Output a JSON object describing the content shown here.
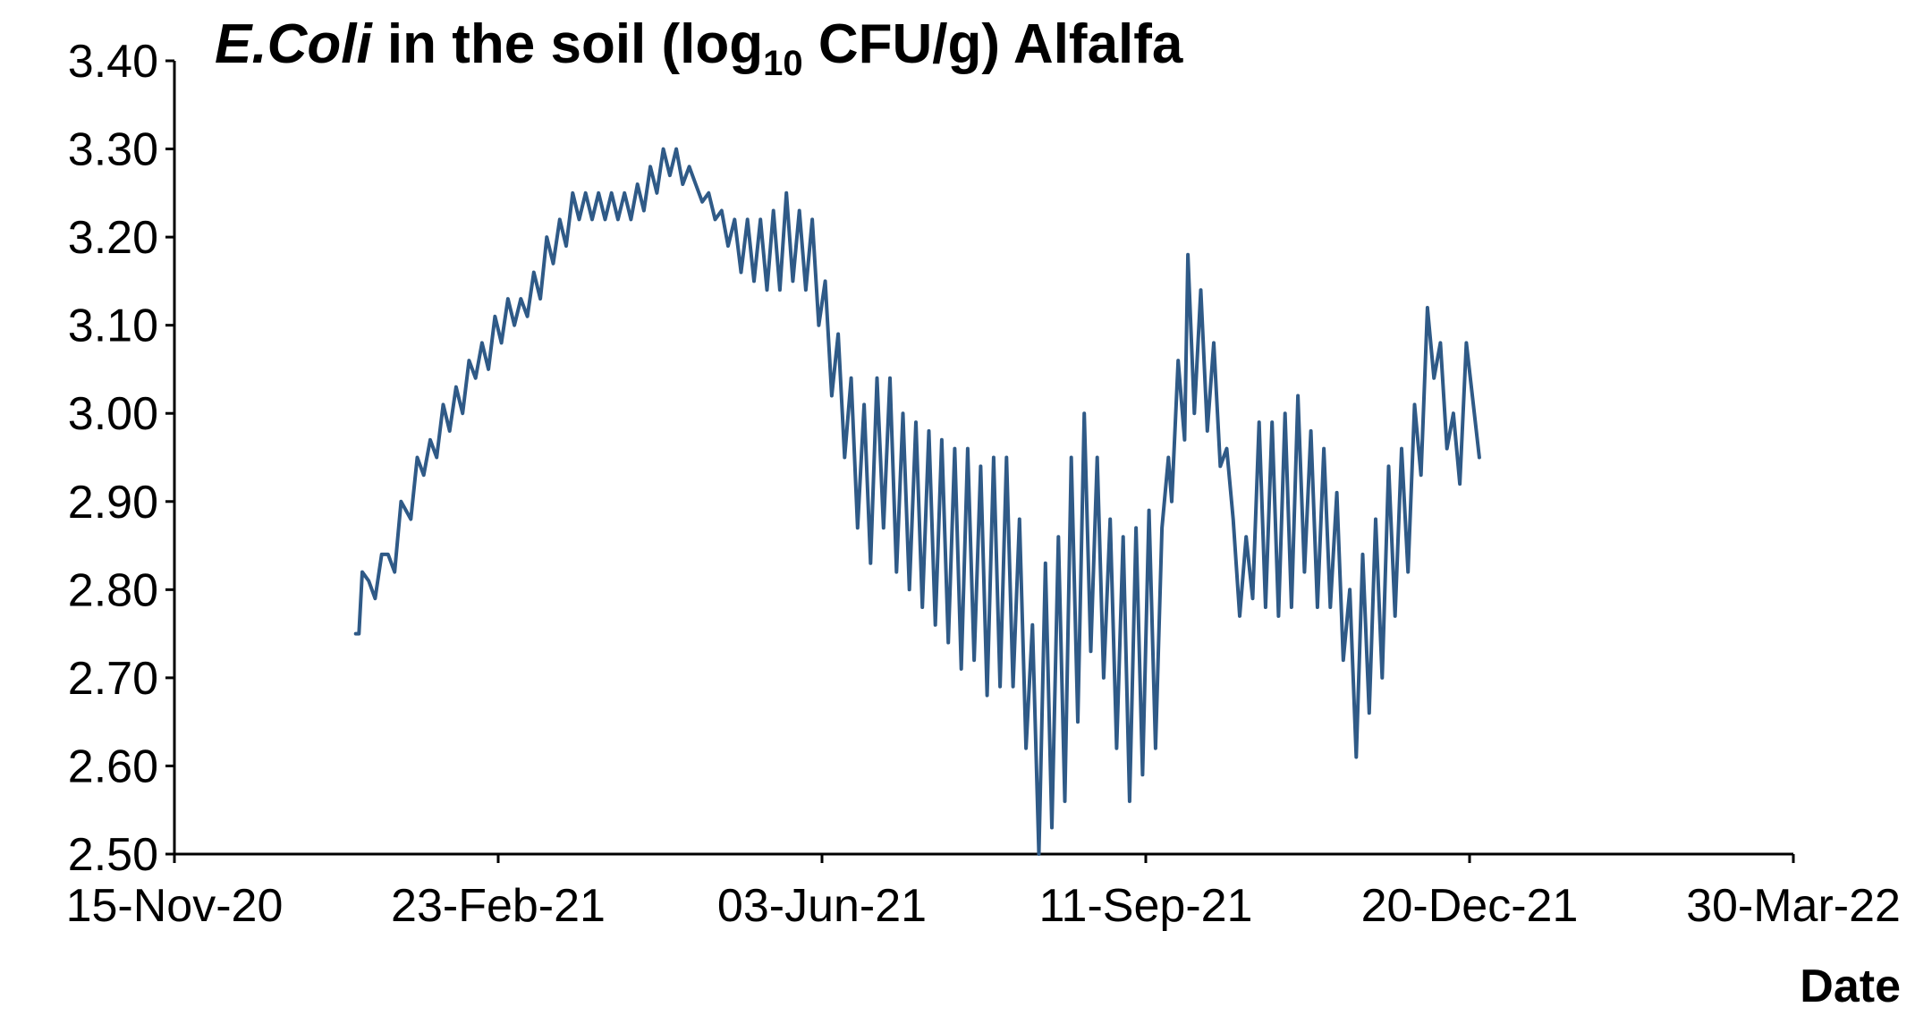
{
  "chart_data": {
    "type": "line",
    "title": {
      "italic": "E.Coli",
      "pre_sub": " in the soil (log",
      "sub": "10",
      "post_sub": " CFU/g) Alfalfa"
    },
    "xlabel": "Date",
    "ylabel": "",
    "xlim": [
      "2020-11-15",
      "2022-03-30"
    ],
    "ylim": [
      2.5,
      3.4
    ],
    "x_ticks": [
      "2020-11-15",
      "2021-02-23",
      "2021-06-03",
      "2021-09-11",
      "2021-12-20",
      "2022-03-30"
    ],
    "x_tick_labels": [
      "15-Nov-20",
      "23-Feb-21",
      "03-Jun-21",
      "11-Sep-21",
      "20-Dec-21",
      "30-Mar-22"
    ],
    "y_ticks": [
      2.5,
      2.6,
      2.7,
      2.8,
      2.9,
      3.0,
      3.1,
      3.2,
      3.3,
      3.4
    ],
    "y_tick_labels": [
      "2.50",
      "2.60",
      "2.70",
      "2.80",
      "2.90",
      "3.00",
      "3.10",
      "3.20",
      "3.30",
      "3.40"
    ],
    "grid": false,
    "legend": "none",
    "colors": {
      "line": "#2f5a87"
    },
    "series": [
      {
        "values": [
          [
            "2021-01-10",
            2.75
          ],
          [
            "2021-01-11",
            2.75
          ],
          [
            "2021-01-12",
            2.82
          ],
          [
            "2021-01-14",
            2.81
          ],
          [
            "2021-01-16",
            2.79
          ],
          [
            "2021-01-18",
            2.84
          ],
          [
            "2021-01-20",
            2.84
          ],
          [
            "2021-01-22",
            2.82
          ],
          [
            "2021-01-24",
            2.9
          ],
          [
            "2021-01-27",
            2.88
          ],
          [
            "2021-01-29",
            2.95
          ],
          [
            "2021-01-31",
            2.93
          ],
          [
            "2021-02-02",
            2.97
          ],
          [
            "2021-02-04",
            2.95
          ],
          [
            "2021-02-06",
            3.01
          ],
          [
            "2021-02-08",
            2.98
          ],
          [
            "2021-02-10",
            3.03
          ],
          [
            "2021-02-12",
            3.0
          ],
          [
            "2021-02-14",
            3.06
          ],
          [
            "2021-02-16",
            3.04
          ],
          [
            "2021-02-18",
            3.08
          ],
          [
            "2021-02-20",
            3.05
          ],
          [
            "2021-02-22",
            3.11
          ],
          [
            "2021-02-24",
            3.08
          ],
          [
            "2021-02-26",
            3.13
          ],
          [
            "2021-02-28",
            3.1
          ],
          [
            "2021-03-02",
            3.13
          ],
          [
            "2021-03-04",
            3.11
          ],
          [
            "2021-03-06",
            3.16
          ],
          [
            "2021-03-08",
            3.13
          ],
          [
            "2021-03-10",
            3.2
          ],
          [
            "2021-03-12",
            3.17
          ],
          [
            "2021-03-14",
            3.22
          ],
          [
            "2021-03-16",
            3.19
          ],
          [
            "2021-03-18",
            3.25
          ],
          [
            "2021-03-20",
            3.22
          ],
          [
            "2021-03-22",
            3.25
          ],
          [
            "2021-03-24",
            3.22
          ],
          [
            "2021-03-26",
            3.25
          ],
          [
            "2021-03-28",
            3.22
          ],
          [
            "2021-03-30",
            3.25
          ],
          [
            "2021-04-01",
            3.22
          ],
          [
            "2021-04-03",
            3.25
          ],
          [
            "2021-04-05",
            3.22
          ],
          [
            "2021-04-07",
            3.26
          ],
          [
            "2021-04-09",
            3.23
          ],
          [
            "2021-04-11",
            3.28
          ],
          [
            "2021-04-13",
            3.25
          ],
          [
            "2021-04-15",
            3.3
          ],
          [
            "2021-04-17",
            3.27
          ],
          [
            "2021-04-19",
            3.3
          ],
          [
            "2021-04-21",
            3.26
          ],
          [
            "2021-04-23",
            3.28
          ],
          [
            "2021-04-25",
            3.26
          ],
          [
            "2021-04-27",
            3.24
          ],
          [
            "2021-04-29",
            3.25
          ],
          [
            "2021-05-01",
            3.22
          ],
          [
            "2021-05-03",
            3.23
          ],
          [
            "2021-05-05",
            3.19
          ],
          [
            "2021-05-07",
            3.22
          ],
          [
            "2021-05-09",
            3.16
          ],
          [
            "2021-05-11",
            3.22
          ],
          [
            "2021-05-13",
            3.15
          ],
          [
            "2021-05-15",
            3.22
          ],
          [
            "2021-05-17",
            3.14
          ],
          [
            "2021-05-19",
            3.23
          ],
          [
            "2021-05-21",
            3.14
          ],
          [
            "2021-05-23",
            3.25
          ],
          [
            "2021-05-25",
            3.15
          ],
          [
            "2021-05-27",
            3.23
          ],
          [
            "2021-05-29",
            3.14
          ],
          [
            "2021-05-31",
            3.22
          ],
          [
            "2021-06-02",
            3.1
          ],
          [
            "2021-06-04",
            3.15
          ],
          [
            "2021-06-06",
            3.02
          ],
          [
            "2021-06-08",
            3.09
          ],
          [
            "2021-06-10",
            2.95
          ],
          [
            "2021-06-12",
            3.04
          ],
          [
            "2021-06-14",
            2.87
          ],
          [
            "2021-06-16",
            3.01
          ],
          [
            "2021-06-18",
            2.83
          ],
          [
            "2021-06-20",
            3.04
          ],
          [
            "2021-06-22",
            2.87
          ],
          [
            "2021-06-24",
            3.04
          ],
          [
            "2021-06-26",
            2.82
          ],
          [
            "2021-06-28",
            3.0
          ],
          [
            "2021-06-30",
            2.8
          ],
          [
            "2021-07-02",
            2.99
          ],
          [
            "2021-07-04",
            2.78
          ],
          [
            "2021-07-06",
            2.98
          ],
          [
            "2021-07-08",
            2.76
          ],
          [
            "2021-07-10",
            2.97
          ],
          [
            "2021-07-12",
            2.74
          ],
          [
            "2021-07-14",
            2.96
          ],
          [
            "2021-07-16",
            2.71
          ],
          [
            "2021-07-18",
            2.96
          ],
          [
            "2021-07-20",
            2.72
          ],
          [
            "2021-07-22",
            2.94
          ],
          [
            "2021-07-24",
            2.68
          ],
          [
            "2021-07-26",
            2.95
          ],
          [
            "2021-07-28",
            2.69
          ],
          [
            "2021-07-30",
            2.95
          ],
          [
            "2021-08-01",
            2.69
          ],
          [
            "2021-08-03",
            2.88
          ],
          [
            "2021-08-05",
            2.62
          ],
          [
            "2021-08-07",
            2.76
          ],
          [
            "2021-08-09",
            2.5
          ],
          [
            "2021-08-11",
            2.83
          ],
          [
            "2021-08-13",
            2.53
          ],
          [
            "2021-08-15",
            2.86
          ],
          [
            "2021-08-17",
            2.56
          ],
          [
            "2021-08-19",
            2.95
          ],
          [
            "2021-08-21",
            2.65
          ],
          [
            "2021-08-23",
            3.0
          ],
          [
            "2021-08-25",
            2.73
          ],
          [
            "2021-08-27",
            2.95
          ],
          [
            "2021-08-29",
            2.7
          ],
          [
            "2021-08-31",
            2.88
          ],
          [
            "2021-09-02",
            2.62
          ],
          [
            "2021-09-04",
            2.86
          ],
          [
            "2021-09-06",
            2.56
          ],
          [
            "2021-09-08",
            2.87
          ],
          [
            "2021-09-10",
            2.59
          ],
          [
            "2021-09-12",
            2.89
          ],
          [
            "2021-09-14",
            2.62
          ],
          [
            "2021-09-16",
            2.87
          ],
          [
            "2021-09-18",
            2.95
          ],
          [
            "2021-09-19",
            2.9
          ],
          [
            "2021-09-21",
            3.06
          ],
          [
            "2021-09-23",
            2.97
          ],
          [
            "2021-09-24",
            3.18
          ],
          [
            "2021-09-26",
            3.0
          ],
          [
            "2021-09-28",
            3.14
          ],
          [
            "2021-09-30",
            2.98
          ],
          [
            "2021-10-02",
            3.08
          ],
          [
            "2021-10-04",
            2.94
          ],
          [
            "2021-10-06",
            2.96
          ],
          [
            "2021-10-08",
            2.88
          ],
          [
            "2021-10-10",
            2.77
          ],
          [
            "2021-10-12",
            2.86
          ],
          [
            "2021-10-14",
            2.79
          ],
          [
            "2021-10-16",
            2.99
          ],
          [
            "2021-10-18",
            2.78
          ],
          [
            "2021-10-20",
            2.99
          ],
          [
            "2021-10-22",
            2.77
          ],
          [
            "2021-10-24",
            3.0
          ],
          [
            "2021-10-26",
            2.78
          ],
          [
            "2021-10-28",
            3.02
          ],
          [
            "2021-10-30",
            2.82
          ],
          [
            "2021-11-01",
            2.98
          ],
          [
            "2021-11-03",
            2.78
          ],
          [
            "2021-11-05",
            2.96
          ],
          [
            "2021-11-07",
            2.78
          ],
          [
            "2021-11-09",
            2.91
          ],
          [
            "2021-11-11",
            2.72
          ],
          [
            "2021-11-13",
            2.8
          ],
          [
            "2021-11-15",
            2.61
          ],
          [
            "2021-11-17",
            2.84
          ],
          [
            "2021-11-19",
            2.66
          ],
          [
            "2021-11-21",
            2.88
          ],
          [
            "2021-11-23",
            2.7
          ],
          [
            "2021-11-25",
            2.94
          ],
          [
            "2021-11-27",
            2.77
          ],
          [
            "2021-11-29",
            2.96
          ],
          [
            "2021-12-01",
            2.82
          ],
          [
            "2021-12-03",
            3.01
          ],
          [
            "2021-12-05",
            2.93
          ],
          [
            "2021-12-07",
            3.12
          ],
          [
            "2021-12-09",
            3.04
          ],
          [
            "2021-12-11",
            3.08
          ],
          [
            "2021-12-13",
            2.96
          ],
          [
            "2021-12-15",
            3.0
          ],
          [
            "2021-12-17",
            2.92
          ],
          [
            "2021-12-19",
            3.08
          ],
          [
            "2021-12-23",
            2.95
          ]
        ]
      }
    ]
  }
}
